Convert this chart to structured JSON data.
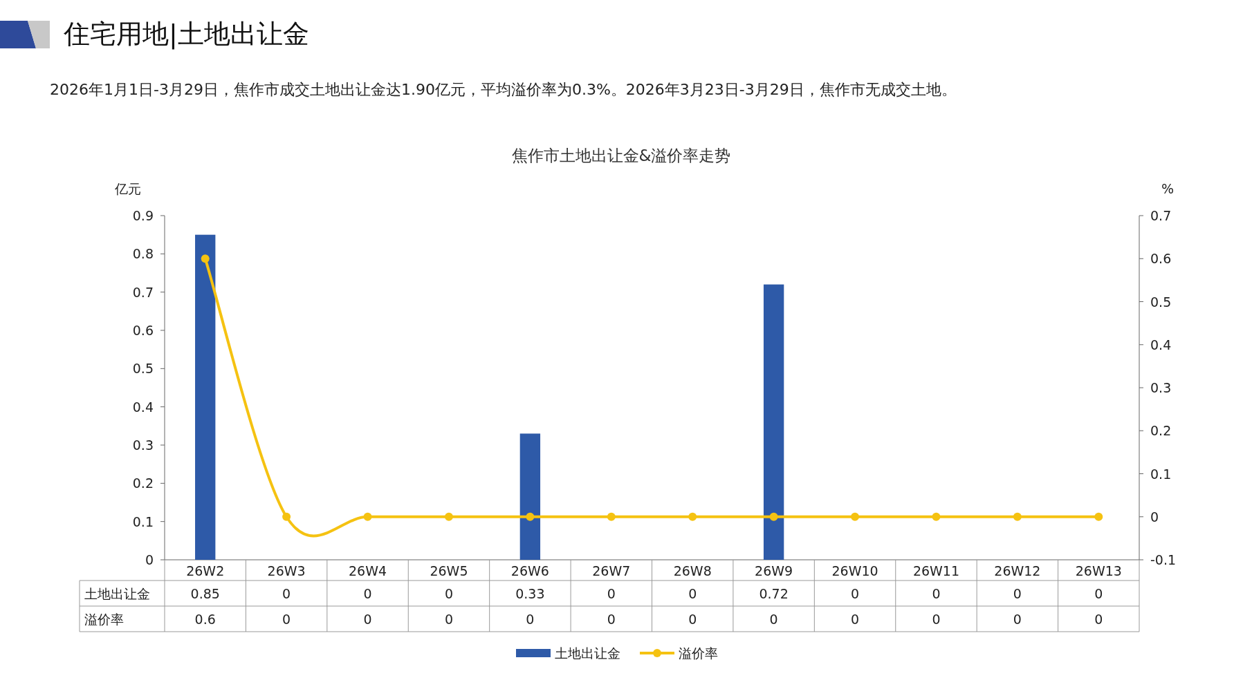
{
  "chart_data": {
    "type": "bar",
    "title": "住宅用地|土地出让金",
    "subtitle": "2026年1月1日-3月29日，焦作市成交土地出让金达1.90亿元，平均溢价率为0.3%。2026年3月23日-3月29日，焦作市无成交土地。",
    "annotations": [
      "焦作市土地出让金&溢价率走势"
    ],
    "ylabel": "亿元",
    "y2label": "%",
    "categories": [
      "26W2",
      "26W3",
      "26W4",
      "26W5",
      "26W6",
      "26W7",
      "26W8",
      "26W9",
      "26W10",
      "26W11",
      "26W12",
      "26W13"
    ],
    "series": [
      {
        "name": "土地出让金",
        "color": "#2e5aa8",
        "values": [
          0.85,
          0,
          0,
          0,
          0.33,
          0,
          0,
          0.72,
          0,
          0,
          0,
          0
        ]
      },
      {
        "name": "溢价率",
        "type": "line",
        "axis": "y2",
        "color": "#f5c211",
        "marker": "circle",
        "values": [
          0.6,
          0,
          0,
          0,
          0,
          0,
          0,
          0,
          0,
          0,
          0,
          0
        ]
      }
    ],
    "ylim": [
      0,
      0.9
    ],
    "yticks": [
      0,
      0.1,
      0.2,
      0.3,
      0.4,
      0.5,
      0.6,
      0.7,
      0.8,
      0.9
    ],
    "y2lim": [
      -0.1,
      0.7
    ],
    "y2ticks": [
      -0.1,
      0,
      0.1,
      0.2,
      0.3,
      0.4,
      0.5,
      0.6,
      0.7
    ],
    "data_labels": true,
    "legend": "bottom",
    "grid": false
  }
}
